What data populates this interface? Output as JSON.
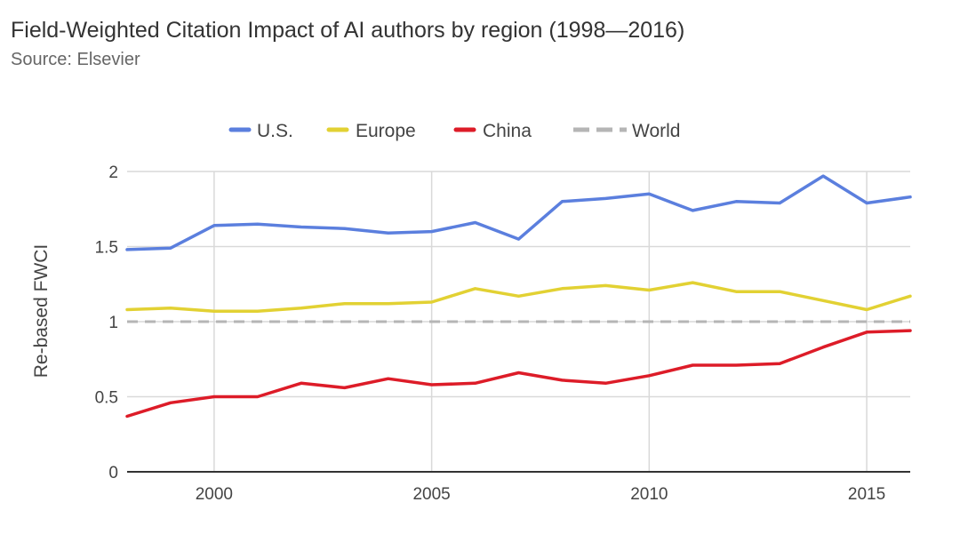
{
  "chart_data": {
    "type": "line",
    "title": "Field-Weighted Citation Impact of AI authors by region (1998—2016)",
    "subtitle": "Source: Elsevier",
    "xlabel": "",
    "ylabel": "Re-based FWCI",
    "x": [
      1998,
      1999,
      2000,
      2001,
      2002,
      2003,
      2004,
      2005,
      2006,
      2007,
      2008,
      2009,
      2010,
      2011,
      2012,
      2013,
      2014,
      2015,
      2016
    ],
    "xlim": [
      1998,
      2016
    ],
    "ylim": [
      0,
      2
    ],
    "xticks": [
      "2000",
      "2005",
      "2010",
      "2015"
    ],
    "yticks": [
      "0",
      "0.5",
      "1",
      "1.5",
      "2"
    ],
    "grid": true,
    "legend_position": "top",
    "series": [
      {
        "name": "U.S.",
        "color": "#5b7fde",
        "dashed": false,
        "values": [
          1.48,
          1.49,
          1.64,
          1.65,
          1.63,
          1.62,
          1.59,
          1.6,
          1.66,
          1.55,
          1.8,
          1.82,
          1.85,
          1.74,
          1.8,
          1.79,
          1.97,
          1.79,
          1.83
        ]
      },
      {
        "name": "Europe",
        "color": "#e2d133",
        "dashed": false,
        "values": [
          1.08,
          1.09,
          1.07,
          1.07,
          1.09,
          1.12,
          1.12,
          1.13,
          1.22,
          1.17,
          1.22,
          1.24,
          1.21,
          1.26,
          1.2,
          1.2,
          1.14,
          1.08,
          1.17
        ]
      },
      {
        "name": "China",
        "color": "#dd1c28",
        "dashed": false,
        "values": [
          0.37,
          0.46,
          0.5,
          0.5,
          0.59,
          0.56,
          0.62,
          0.58,
          0.59,
          0.66,
          0.61,
          0.59,
          0.64,
          0.71,
          0.71,
          0.72,
          0.83,
          0.93,
          0.94
        ]
      },
      {
        "name": "World",
        "color": "#b5b5b5",
        "dashed": true,
        "values": [
          1,
          1,
          1,
          1,
          1,
          1,
          1,
          1,
          1,
          1,
          1,
          1,
          1,
          1,
          1,
          1,
          1,
          1,
          1
        ]
      }
    ]
  }
}
